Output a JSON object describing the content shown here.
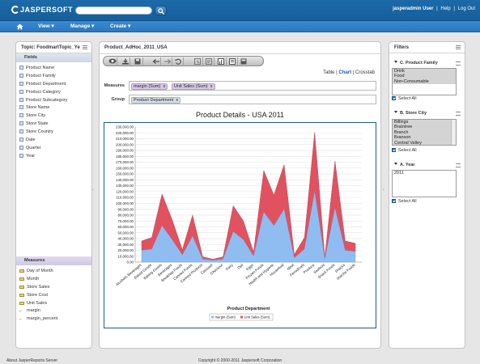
{
  "header": {
    "logo": "JASPERSOFT",
    "search_placeholder": "",
    "user": "jasperadmin User",
    "help": "Help",
    "logout": "Log Out",
    "sep": "|"
  },
  "nav": {
    "view": "View",
    "manage": "Manage",
    "create": "Create"
  },
  "left_panel": {
    "title": "Topic: FoodmartTopic_Ye",
    "fields_label": "Fields",
    "fields": [
      "Product Name",
      "Product Family",
      "Product Department",
      "Product Category",
      "Product Subcategory",
      "Store Name",
      "Store City",
      "Store State",
      "Store Country",
      "Date",
      "Quarter",
      "Year"
    ],
    "measures_label": "Measures",
    "measures": [
      {
        "label": "Day of Month",
        "icon": "ruler"
      },
      {
        "label": "Month",
        "icon": "ruler"
      },
      {
        "label": "Store Sales",
        "icon": "ruler"
      },
      {
        "label": "Store Cost",
        "icon": "ruler"
      },
      {
        "label": "Unit Sales",
        "icon": "ruler"
      },
      {
        "label": "margin",
        "icon": "sum"
      },
      {
        "label": "margin_percent",
        "icon": "sum"
      }
    ]
  },
  "center": {
    "title": "Product_AdHoc_2011_USA",
    "view_table": "Table",
    "view_chart": "Chart",
    "view_crosstab": "Crosstab",
    "sep": "|",
    "measures_label": "Measures",
    "measures_pills": [
      "margin (Sum)",
      "Unit Sales (Sum)"
    ],
    "group_label": "Group",
    "group_pills": [
      "Product Department"
    ],
    "pill_remove": "x"
  },
  "chart_data": {
    "type": "area",
    "title": "Product Details - USA 2011",
    "xlabel": "Product Department",
    "ylabel": "",
    "ylim": [
      0,
      230000
    ],
    "yticks": [
      0,
      10000,
      20000,
      30000,
      40000,
      50000,
      60000,
      70000,
      80000,
      90000,
      100000,
      110000,
      120000,
      130000,
      140000,
      150000,
      160000,
      170000,
      180000,
      190000,
      200000,
      210000,
      220000,
      230000
    ],
    "ytick_labels": [
      "0.00",
      "10,000.00",
      "20,000.00",
      "30,000.00",
      "40,000.00",
      "50,000.00",
      "60,000.00",
      "70,000.00",
      "80,000.00",
      "90,000.00",
      "100,000.00",
      "110,000.00",
      "120,000.00",
      "130,000.00",
      "140,000.00",
      "150,000.00",
      "160,000.00",
      "170,000.00",
      "180,000.00",
      "190,000.00",
      "200,000.00",
      "210,000.00",
      "220,000.00",
      "230,000.00"
    ],
    "stacked": true,
    "grid": true,
    "legend": "bottom",
    "categories": [
      "Alcoholic Beverages",
      "Baked Goods",
      "Baking Goods",
      "Beverages",
      "Breakfast Foods",
      "Canned Foods",
      "Canned Products",
      "Carousel",
      "Checkout",
      "Dairy",
      "Deli",
      "Eggs",
      "Frozen Foods",
      "Health and Hygiene",
      "Household",
      "Meat",
      "Periodicals",
      "Produce",
      "Seafood",
      "Snack Foods",
      "Snacks",
      "Starchy Foods"
    ],
    "series": [
      {
        "name": "margin (Sum)",
        "color": "#8fbdf2",
        "values": [
          20000,
          22000,
          62000,
          38000,
          12000,
          44000,
          5000,
          3000,
          5000,
          52000,
          38000,
          10000,
          85000,
          62000,
          90000,
          7000,
          22000,
          120000,
          5000,
          92000,
          20000,
          18000
        ]
      },
      {
        "name": "Unit Sales (Sum)",
        "color": "#e2515f",
        "values": [
          16000,
          20000,
          54000,
          34000,
          9000,
          36000,
          4000,
          2000,
          4000,
          44000,
          32000,
          7000,
          71000,
          52000,
          76000,
          6000,
          20000,
          101000,
          4000,
          80000,
          16000,
          14000
        ]
      }
    ]
  },
  "filters": {
    "title": "Filters",
    "sections": [
      {
        "title": "C. Product Family",
        "items": [
          "Drink",
          "Food",
          "Non-Consumable"
        ],
        "select_all": "Select All"
      },
      {
        "title": "B. Store City",
        "items": [
          "Billings",
          "Braintree",
          "Branch",
          "Branson",
          "Central Valley"
        ],
        "select_all": "Select All"
      },
      {
        "title": "A. Year",
        "items": [
          "2011"
        ],
        "select_all": "Select All"
      }
    ]
  },
  "footer": {
    "left": "About JasperReports Server",
    "center": "Copyright © 2000-2011 Jaspersoft Corporation"
  },
  "colors": {
    "header": "#1d6aa8",
    "nav": "#3a8ad0",
    "accent": "#1c5aa3"
  }
}
